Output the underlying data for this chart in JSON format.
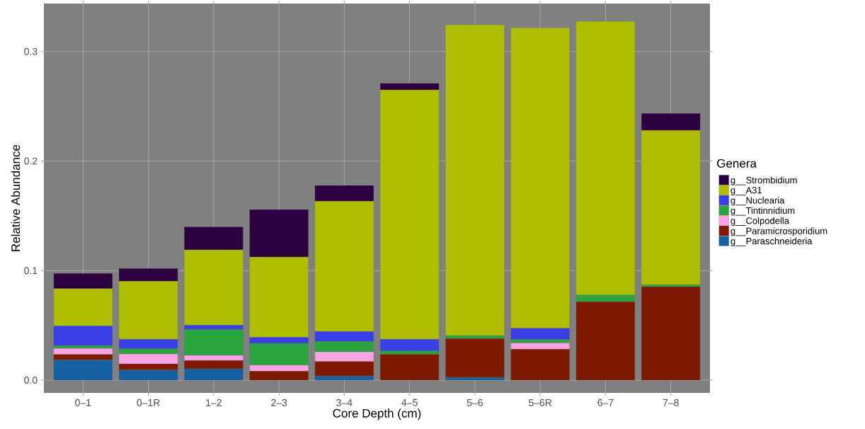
{
  "chart_data": {
    "type": "bar",
    "stacked": true,
    "xlabel": "Core Depth (cm)",
    "ylabel": "Relative Abundance",
    "legend_title": "Genera",
    "legend": "right",
    "grid": true,
    "categories": [
      "0–1",
      "0–1R",
      "1–2",
      "2–3",
      "3–4",
      "4–5",
      "5–6",
      "5–6R",
      "6–7",
      "7–8"
    ],
    "ylim": [
      -0.0116,
      0.3438
    ],
    "yticks": [
      {
        "value": 0,
        "label": "0.0"
      },
      {
        "value": 0.1,
        "label": "0.1"
      },
      {
        "value": 0.2,
        "label": "0.2"
      },
      {
        "value": 0.3,
        "label": "0.3"
      }
    ],
    "series": [
      {
        "name": "g__Paraschneideria",
        "color": "#1560a0",
        "values": [
          0.0185,
          0.0093,
          0.0103,
          0,
          0.0038,
          0,
          0.0025,
          0,
          0,
          0
        ]
      },
      {
        "name": "g__Paramicrosporidium",
        "color": "#7f1a02",
        "values": [
          0.005,
          0.0056,
          0.0076,
          0.0082,
          0.0132,
          0.0236,
          0.0355,
          0.0283,
          0.0716,
          0.0853
        ]
      },
      {
        "name": "g__Colpodella",
        "color": "#f9a3e4",
        "values": [
          0.0055,
          0.009,
          0.0047,
          0.0056,
          0.0088,
          0,
          0,
          0.0056,
          0,
          0
        ]
      },
      {
        "name": "g__Tintinnidium",
        "color": "#2aa43c",
        "values": [
          0.0025,
          0.0047,
          0.0237,
          0.0198,
          0.0094,
          0.0031,
          0.0028,
          0.0032,
          0.0061,
          0.0018
        ]
      },
      {
        "name": "g__Nuclearia",
        "color": "#3a3ee6",
        "values": [
          0.018,
          0.0087,
          0.0039,
          0.0056,
          0.0093,
          0.0106,
          0,
          0.0103,
          0,
          0
        ]
      },
      {
        "name": "g__A31",
        "color": "#b0be00",
        "values": [
          0.034,
          0.053,
          0.0688,
          0.0732,
          0.1189,
          0.2277,
          0.2835,
          0.2743,
          0.2498,
          0.1409
        ]
      },
      {
        "name": "g__Strombidium",
        "color": "#2d0040",
        "values": [
          0.014,
          0.0117,
          0.021,
          0.0433,
          0.0143,
          0.006,
          0,
          0,
          0,
          0.0155
        ]
      }
    ]
  }
}
